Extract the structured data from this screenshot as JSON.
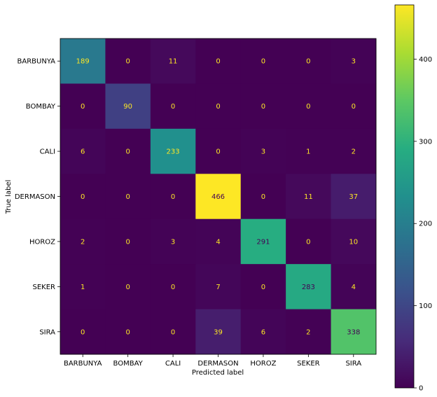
{
  "chart_data": {
    "type": "heatmap",
    "title": "",
    "xlabel": "Predicted label",
    "ylabel": "True label",
    "x_categories": [
      "BARBUNYA",
      "BOMBAY",
      "CALI",
      "DERMASON",
      "HOROZ",
      "SEKER",
      "SIRA"
    ],
    "y_categories": [
      "BARBUNYA",
      "BOMBAY",
      "CALI",
      "DERMASON",
      "HOROZ",
      "SEKER",
      "SIRA"
    ],
    "matrix": [
      [
        189,
        0,
        11,
        0,
        0,
        0,
        3
      ],
      [
        0,
        90,
        0,
        0,
        0,
        0,
        0
      ],
      [
        6,
        0,
        233,
        0,
        3,
        1,
        2
      ],
      [
        0,
        0,
        0,
        466,
        0,
        11,
        37
      ],
      [
        2,
        0,
        3,
        4,
        291,
        0,
        10
      ],
      [
        1,
        0,
        0,
        7,
        0,
        283,
        4
      ],
      [
        0,
        0,
        0,
        39,
        6,
        2,
        338
      ]
    ],
    "colormap": "viridis",
    "vmin": 0,
    "vmax": 466,
    "colorbar_ticks": [
      0,
      100,
      200,
      300,
      400
    ],
    "grid": false,
    "text_color_light": "#fde725",
    "text_color_dark": "#440154"
  }
}
